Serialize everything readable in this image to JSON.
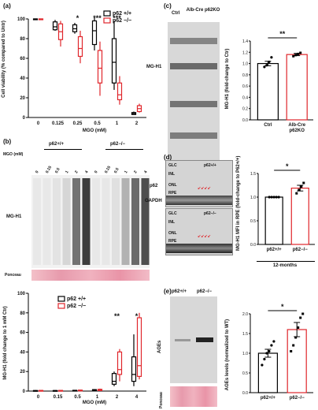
{
  "panel_a": {
    "label": "(a)",
    "ylabel": "Cell viability (% compared to Untr)",
    "xlabel": "MGO (mM)",
    "categories": [
      "0",
      "0.125",
      "0.25",
      "0.5",
      "1",
      "2"
    ],
    "yticks": [
      "0",
      "20",
      "40",
      "60",
      "80",
      "100"
    ],
    "legend": [
      "p62 +/+",
      "p62 −/−"
    ],
    "significance": [
      "*",
      "***",
      "***"
    ],
    "colors": {
      "wt": "#000000",
      "ko": "#e0262b"
    }
  },
  "panel_b": {
    "label": "(b)",
    "group_labels": [
      "p62+/+",
      "p62−/−"
    ],
    "lane_header": "MGO (mM)",
    "lanes": [
      "0",
      "0.15",
      "0.5",
      "1",
      "2",
      "4"
    ],
    "blot_label": "MG-H1",
    "ponceau_label": "Ponceau"
  },
  "panel_b_chart": {
    "ylabel": "MG-H1 (fold change to 1 mM Ctr)",
    "xlabel": "MGO (mM)",
    "categories": [
      "0",
      "0.15",
      "0.5",
      "1",
      "2",
      "4"
    ],
    "yticks": [
      "0",
      "20",
      "40",
      "60",
      "80",
      "100"
    ],
    "legend": [
      "p62 +/+",
      "p62 −/−"
    ],
    "significance": [
      "**",
      "*"
    ]
  },
  "panel_c": {
    "label": "(c)",
    "col_labels": [
      "Ctrl",
      "Alb-Cre p62KO"
    ],
    "blot_labels": [
      "MG-H1",
      "p62",
      "GAPDH"
    ],
    "ylabel": "MG-H1 (fold-change to Ctr)",
    "yticks": [
      "0.0",
      "0.2",
      "0.4",
      "0.6",
      "0.8",
      "1.0",
      "1.2",
      "1.4"
    ],
    "categories": [
      "Ctrl",
      "Alb-Cre p62KO"
    ],
    "significance": "**"
  },
  "panel_d": {
    "label": "(d)",
    "images": [
      {
        "genotype": "p62+/+",
        "layers": [
          "GLC",
          "INL",
          "ONL",
          "RPE"
        ]
      },
      {
        "genotype": "p62−/−",
        "layers": [
          "GLC",
          "INL",
          "ONL",
          "RPE"
        ]
      }
    ],
    "ylabel": "MG-H1 MFI in RPE (fold-change to P62+/+)",
    "yticks": [
      "0.0",
      "0.5",
      "1.0",
      "1.5"
    ],
    "categories": [
      "p62+/+",
      "p62−/−"
    ],
    "time_label": "12-months",
    "significance": "*"
  },
  "panel_e": {
    "label": "(e)",
    "col_labels": [
      "p62+/+",
      "p62−/−"
    ],
    "blot_label": "AGEs",
    "ponceau_label": "Ponceau",
    "ylabel": "AGEs levels (normalized to WT)",
    "yticks": [
      "0.0",
      "0.5",
      "1.0",
      "1.5",
      "2.0"
    ],
    "categories": [
      "p62+/+",
      "p62−/−"
    ],
    "significance": "*"
  },
  "chart_data": [
    {
      "type": "box",
      "panel": "a",
      "categories": [
        "0",
        "0.125",
        "0.25",
        "0.5",
        "1",
        "2"
      ],
      "ylim": [
        0,
        100
      ],
      "series": [
        {
          "name": "p62 +/+",
          "boxes": [
            {
              "min": 100,
              "q1": 100,
              "median": 100,
              "q3": 100,
              "max": 100
            },
            {
              "min": 88,
              "q1": 89,
              "median": 92,
              "q3": 97,
              "max": 99
            },
            {
              "min": 85,
              "q1": 87,
              "median": 90,
              "q3": 94,
              "max": 96
            },
            {
              "min": 68,
              "q1": 74,
              "median": 88,
              "q3": 98,
              "max": 101
            },
            {
              "min": 28,
              "q1": 35,
              "median": 56,
              "q3": 80,
              "max": 98
            },
            {
              "min": 3,
              "q1": 3,
              "median": 4,
              "q3": 5,
              "max": 6
            }
          ]
        },
        {
          "name": "p62 −/−",
          "boxes": [
            {
              "min": 100,
              "q1": 100,
              "median": 100,
              "q3": 100,
              "max": 100
            },
            {
              "min": 72,
              "q1": 79,
              "median": 87,
              "q3": 95,
              "max": 98
            },
            {
              "min": 55,
              "q1": 62,
              "median": 70,
              "q3": 82,
              "max": 88
            },
            {
              "min": 22,
              "q1": 35,
              "median": 50,
              "q3": 68,
              "max": 77
            },
            {
              "min": 13,
              "q1": 18,
              "median": 23,
              "q3": 35,
              "max": 42
            },
            {
              "min": 5,
              "q1": 6,
              "median": 9,
              "q3": 12,
              "max": 14
            }
          ]
        }
      ]
    },
    {
      "type": "box",
      "panel": "b",
      "categories": [
        "0",
        "0.15",
        "0.5",
        "1",
        "2",
        "4"
      ],
      "ylim": [
        0,
        100
      ],
      "series": [
        {
          "name": "p62 +/+",
          "boxes": [
            {
              "min": 0,
              "q1": 0,
              "median": 0.3,
              "q3": 0.6,
              "max": 1
            },
            {
              "min": 0,
              "q1": 0,
              "median": 0.3,
              "q3": 0.6,
              "max": 1
            },
            {
              "min": 0,
              "q1": 0.2,
              "median": 0.4,
              "q3": 0.8,
              "max": 1
            },
            {
              "min": 0,
              "q1": 0.4,
              "median": 1,
              "q3": 1.5,
              "max": 2
            },
            {
              "min": 5,
              "q1": 7,
              "median": 10,
              "q3": 18,
              "max": 20
            },
            {
              "min": 5,
              "q1": 10,
              "median": 17,
              "q3": 35,
              "max": 58
            }
          ]
        },
        {
          "name": "p62 −/−",
          "boxes": [
            {
              "min": 0,
              "q1": 0,
              "median": 0.3,
              "q3": 0.7,
              "max": 1
            },
            {
              "min": 0,
              "q1": 0,
              "median": 0.3,
              "q3": 0.7,
              "max": 1
            },
            {
              "min": 0,
              "q1": 0.2,
              "median": 0.6,
              "q3": 1,
              "max": 1.4
            },
            {
              "min": 0,
              "q1": 0.5,
              "median": 1,
              "q3": 1.8,
              "max": 2.5
            },
            {
              "min": 10,
              "q1": 17,
              "median": 22,
              "q3": 40,
              "max": 43
            },
            {
              "min": 12,
              "q1": 15,
              "median": 26,
              "q3": 75,
              "max": 80
            }
          ]
        }
      ]
    },
    {
      "type": "bar",
      "panel": "c",
      "categories": [
        "Ctrl",
        "Alb-Cre p62KO"
      ],
      "values": [
        1.0,
        1.16
      ],
      "errors": [
        0.04,
        0.02
      ],
      "points": [
        [
          0.94,
          0.97,
          1.03,
          1.11
        ],
        [
          1.13,
          1.15,
          1.17,
          1.19
        ]
      ],
      "ylim": [
        0,
        1.4
      ]
    },
    {
      "type": "bar",
      "panel": "d",
      "categories": [
        "p62+/+",
        "p62−/−"
      ],
      "values": [
        1.0,
        1.19
      ],
      "errors": [
        0.0,
        0.06
      ],
      "points": [
        [
          1.0,
          1.0,
          1.0,
          1.0,
          1.0
        ],
        [
          1.08,
          1.15,
          1.22,
          1.3
        ]
      ],
      "ylim": [
        0,
        1.5
      ]
    },
    {
      "type": "bar",
      "panel": "e",
      "categories": [
        "p62+/+",
        "p62−/−"
      ],
      "values": [
        1.0,
        1.6
      ],
      "errors": [
        0.1,
        0.18
      ],
      "points": [
        [
          0.7,
          0.85,
          1.0,
          1.05,
          1.2,
          1.3
        ],
        [
          1.05,
          1.2,
          1.4,
          1.65,
          1.9,
          2.0
        ]
      ],
      "ylim": [
        0,
        2.0
      ]
    }
  ]
}
